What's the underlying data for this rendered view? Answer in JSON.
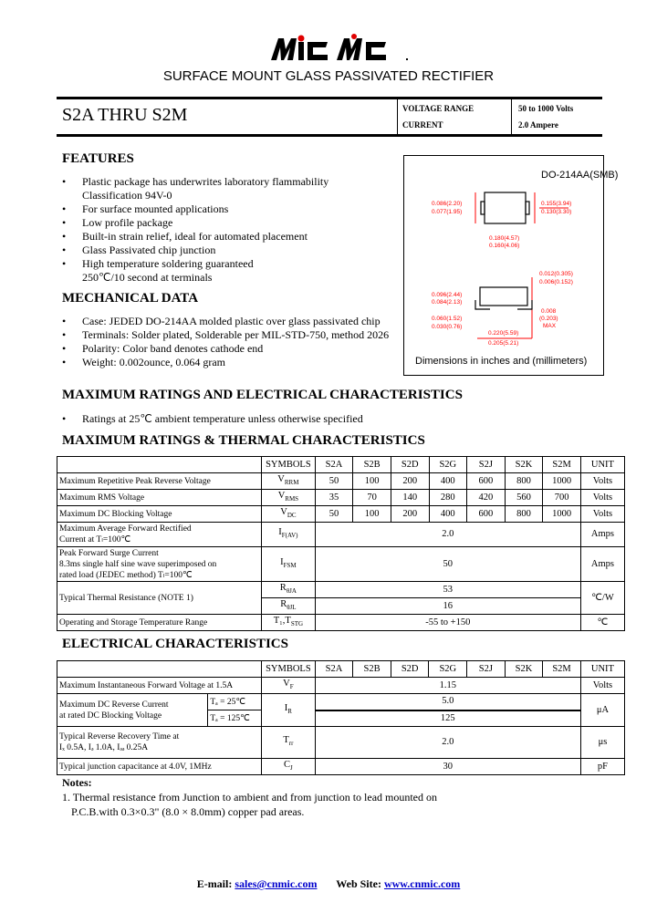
{
  "brand": {
    "logo_text": "MIC MC",
    "accent": "#e00000"
  },
  "title": "SURFACE MOUNT GLASS PASSIVATED RECTIFIER",
  "header": {
    "part": "S2A THRU S2M",
    "voltage_label": "VOLTAGE RANGE",
    "voltage_value": "50 to 1000 Volts",
    "current_label": "CURRENT",
    "current_value": "2.0 Ampere"
  },
  "features": {
    "heading": "FEATURES",
    "items": [
      "Plastic package has underwrites laboratory flammability",
      "Classification 94V-0",
      "For surface mounted applications",
      "Low profile package",
      "Built-in strain relief, ideal for automated placement",
      "Glass Passivated chip junction",
      "High temperature soldering guaranteed",
      "250℃/10 second at terminals"
    ]
  },
  "package": {
    "name": "DO-214AA(SMB)",
    "caption": "Dimensions in inches and (millimeters)",
    "dims": [
      "0.086(2.20)",
      "0.077(1.95)",
      "0.155(3.94)",
      "0.130(3.30)",
      "0.180(4.57)",
      "0.160(4.06)",
      "0.012(0.305)",
      "0.006(0.152)",
      "0.096(2.44)",
      "0.084(2.13)",
      "0.060(1.52)",
      "0.030(0.76)",
      "0.008",
      "(0.203)",
      "MAX",
      "0.220(5.59)",
      "0.205(5.21)"
    ],
    "dim_color": "#ff0000"
  },
  "mechanical": {
    "heading": "MECHANICAL DATA",
    "items": [
      "Case: JEDED DO-214AA molded plastic over glass passivated chip",
      "Terminals: Solder plated, Solderable per MIL-STD-750, method 2026",
      "Polarity: Color band denotes cathode end",
      "Weight:  0.002ounce, 0.064 gram"
    ]
  },
  "ratings": {
    "heading": "MAXIMUM RATINGS AND ELECTRICAL CHARACTERISTICS",
    "note": "Ratings at 25℃ ambient temperature unless otherwise specified",
    "subheading": "MAXIMUM RATINGS & THERMAL CHARACTERISTICS"
  },
  "table1": {
    "headers": [
      "SYMBOLS",
      "S2A",
      "S2B",
      "S2D",
      "S2G",
      "S2J",
      "S2K",
      "S2M",
      "UNIT"
    ],
    "rows": [
      {
        "desc": "Maximum Repetitive Peak Reverse Voltage",
        "sym": "V",
        "sub": "RRM",
        "vals": [
          "50",
          "100",
          "200",
          "400",
          "600",
          "800",
          "1000"
        ],
        "unit": "Volts"
      },
      {
        "desc": "Maximum RMS Voltage",
        "sym": "V",
        "sub": "RMS",
        "vals": [
          "35",
          "70",
          "140",
          "280",
          "420",
          "560",
          "700"
        ],
        "unit": "Volts"
      },
      {
        "desc": "Maximum DC Blocking Voltage",
        "sym": "V",
        "sub": "DC",
        "vals": [
          "50",
          "100",
          "200",
          "400",
          "600",
          "800",
          "1000"
        ],
        "unit": "Volts"
      }
    ],
    "ifav": {
      "desc1": "Maximum Average Forward Rectified",
      "desc2": "Current at Tₗ=100℃",
      "sym": "I",
      "sub": "F(AV)",
      "val": "2.0",
      "unit": "Amps"
    },
    "ifsm": {
      "desc1": "Peak Forward Surge Current",
      "desc2": "8.3ms single half sine wave superimposed on",
      "desc3": "rated load (JEDEC method) Tₗ=100℃",
      "sym": "I",
      "sub": "FSM",
      "val": "50",
      "unit": "Amps"
    },
    "thermal": {
      "desc": "Typical Thermal Resistance (NOTE 1)",
      "sym1": "R",
      "sub1": "θJA",
      "val1": "53",
      "sym2": "R",
      "sub2": "θJL",
      "val2": "16",
      "unit": "℃/W"
    },
    "temp": {
      "desc": "Operating and Storage Temperature Range",
      "sym": "T₁,T",
      "sub": "STG",
      "val": "-55 to +150",
      "unit": "℃"
    }
  },
  "electrical": {
    "heading": "ELECTRICAL CHARACTERISTICS",
    "vf": {
      "desc": "Maximum Instantaneous Forward Voltage at 1.5A",
      "sym": "V",
      "sub": "F",
      "val": "1.15",
      "unit": "Volts"
    },
    "ir": {
      "desc1": "Maximum DC Reverse Current",
      "desc2": "at rated DC Blocking Voltage",
      "cond1": "Tₐ = 25℃",
      "cond2": "Tₐ = 125℃",
      "sym": "I",
      "sub": "R",
      "val1": "5.0",
      "val2": "125",
      "unit": "μA"
    },
    "trr": {
      "desc1": "Typical Reverse Recovery Time at",
      "desc2": "Iₓ 0.5A, Iₔ 1.0A, Iₔₔ 0.25A",
      "sym": "T",
      "sub": "rr",
      "val": "2.0",
      "unit": "μs"
    },
    "cj": {
      "desc": "Typical junction capacitance at 4.0V, 1MHz",
      "sym": "C",
      "sub": "J",
      "val": "30",
      "unit": "pF"
    }
  },
  "notes": {
    "heading": "Notes:",
    "line1": "1. Thermal resistance from Junction to ambient and from junction to lead mounted on",
    "line2": "P.C.B.with 0.3×0.3\" (8.0 × 8.0mm) copper pad areas."
  },
  "footer": {
    "email_label": "E-mail:",
    "email": "sales@cnmic.com",
    "web_label": "Web Site:",
    "web": "www.cnmic.com"
  }
}
